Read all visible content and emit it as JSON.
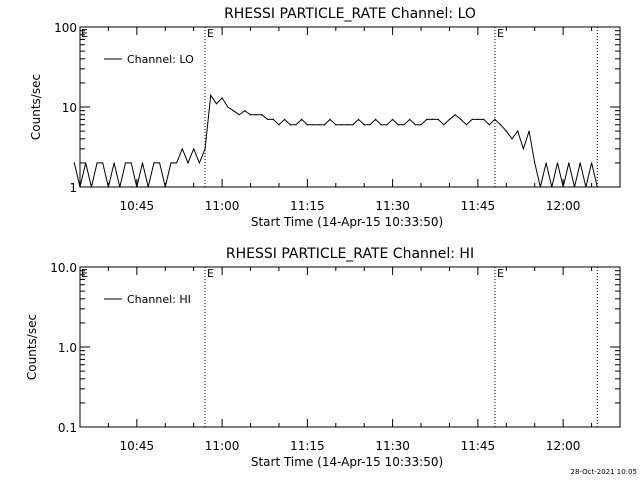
{
  "chart_data": [
    {
      "type": "line",
      "title": "RHESSI PARTICLE_RATE Channel: LO",
      "xlabel": "Start Time (14-Apr-15 10:33:50)",
      "ylabel": "Counts/sec",
      "yscale": "log",
      "xlim": [
        "10:35",
        "12:10"
      ],
      "ylim": [
        1,
        100
      ],
      "xticks": [
        "10:45",
        "11:00",
        "11:15",
        "11:30",
        "11:45",
        "12:00"
      ],
      "yticks": [
        {
          "value": 1,
          "label": "1"
        },
        {
          "value": 10,
          "label": "10"
        },
        {
          "value": 100,
          "label": "100"
        }
      ],
      "grid": false,
      "legend": {
        "placement": "top-left",
        "entries": [
          "Channel: LO"
        ]
      },
      "markers": [
        {
          "time": "10:57",
          "label": "E"
        },
        {
          "time": "11:48",
          "label": "E"
        },
        {
          "time": "12:06",
          "label": ""
        }
      ],
      "edge_label": "E",
      "series": [
        {
          "name": "Channel: LO",
          "x": [
            "10:34",
            "10:35",
            "10:36",
            "10:37",
            "10:38",
            "10:39",
            "10:40",
            "10:41",
            "10:42",
            "10:43",
            "10:44",
            "10:45",
            "10:46",
            "10:47",
            "10:48",
            "10:49",
            "10:50",
            "10:51",
            "10:52",
            "10:53",
            "10:54",
            "10:55",
            "10:56",
            "10:57",
            "10:58",
            "10:59",
            "11:00",
            "11:01",
            "11:02",
            "11:03",
            "11:04",
            "11:05",
            "11:06",
            "11:07",
            "11:08",
            "11:09",
            "11:10",
            "11:11",
            "11:12",
            "11:13",
            "11:14",
            "11:15",
            "11:16",
            "11:17",
            "11:18",
            "11:19",
            "11:20",
            "11:21",
            "11:22",
            "11:23",
            "11:24",
            "11:25",
            "11:26",
            "11:27",
            "11:28",
            "11:29",
            "11:30",
            "11:31",
            "11:32",
            "11:33",
            "11:34",
            "11:35",
            "11:36",
            "11:37",
            "11:38",
            "11:39",
            "11:40",
            "11:41",
            "11:42",
            "11:43",
            "11:44",
            "11:45",
            "11:46",
            "11:47",
            "11:48",
            "11:49",
            "11:50",
            "11:51",
            "11:52",
            "11:53",
            "11:54",
            "11:55",
            "11:56",
            "11:57",
            "11:58",
            "11:59",
            "12:00",
            "12:01",
            "12:02",
            "12:03",
            "12:04",
            "12:05",
            "12:06"
          ],
          "values": [
            2,
            1,
            2,
            1,
            2,
            2,
            1,
            2,
            1,
            2,
            2,
            1,
            2,
            1,
            2,
            2,
            1,
            2,
            2,
            3,
            2,
            3,
            2,
            3,
            14,
            11,
            13,
            10,
            9,
            8,
            9,
            8,
            8,
            8,
            7,
            7,
            6,
            7,
            6,
            6,
            7,
            6,
            6,
            6,
            6,
            7,
            6,
            6,
            6,
            6,
            7,
            6,
            6,
            7,
            6,
            6,
            7,
            6,
            6,
            7,
            6,
            6,
            7,
            7,
            7,
            6,
            7,
            8,
            7,
            6,
            7,
            7,
            7,
            6,
            7,
            6,
            5,
            4,
            5,
            3,
            5,
            2,
            1,
            2,
            1,
            2,
            1,
            2,
            1,
            2,
            1,
            2,
            1
          ]
        }
      ]
    },
    {
      "type": "line",
      "title": "RHESSI PARTICLE_RATE Channel: HI",
      "xlabel": "Start Time (14-Apr-15 10:33:50)",
      "ylabel": "Counts/sec",
      "yscale": "log",
      "xlim": [
        "10:35",
        "12:10"
      ],
      "ylim": [
        0.1,
        10
      ],
      "xticks": [
        "10:45",
        "11:00",
        "11:15",
        "11:30",
        "11:45",
        "12:00"
      ],
      "yticks": [
        {
          "value": 0.1,
          "label": "0.1"
        },
        {
          "value": 1,
          "label": "1.0"
        },
        {
          "value": 10,
          "label": "10.0"
        }
      ],
      "grid": false,
      "legend": {
        "placement": "top-left",
        "entries": [
          "Channel: HI"
        ]
      },
      "markers": [
        {
          "time": "10:57",
          "label": "E"
        },
        {
          "time": "11:48",
          "label": "E"
        },
        {
          "time": "12:06",
          "label": ""
        }
      ],
      "edge_label": "E",
      "series": [
        {
          "name": "Channel: HI",
          "x": [],
          "values": []
        }
      ]
    }
  ],
  "timestamp": "28-Oct-2021 10:05"
}
